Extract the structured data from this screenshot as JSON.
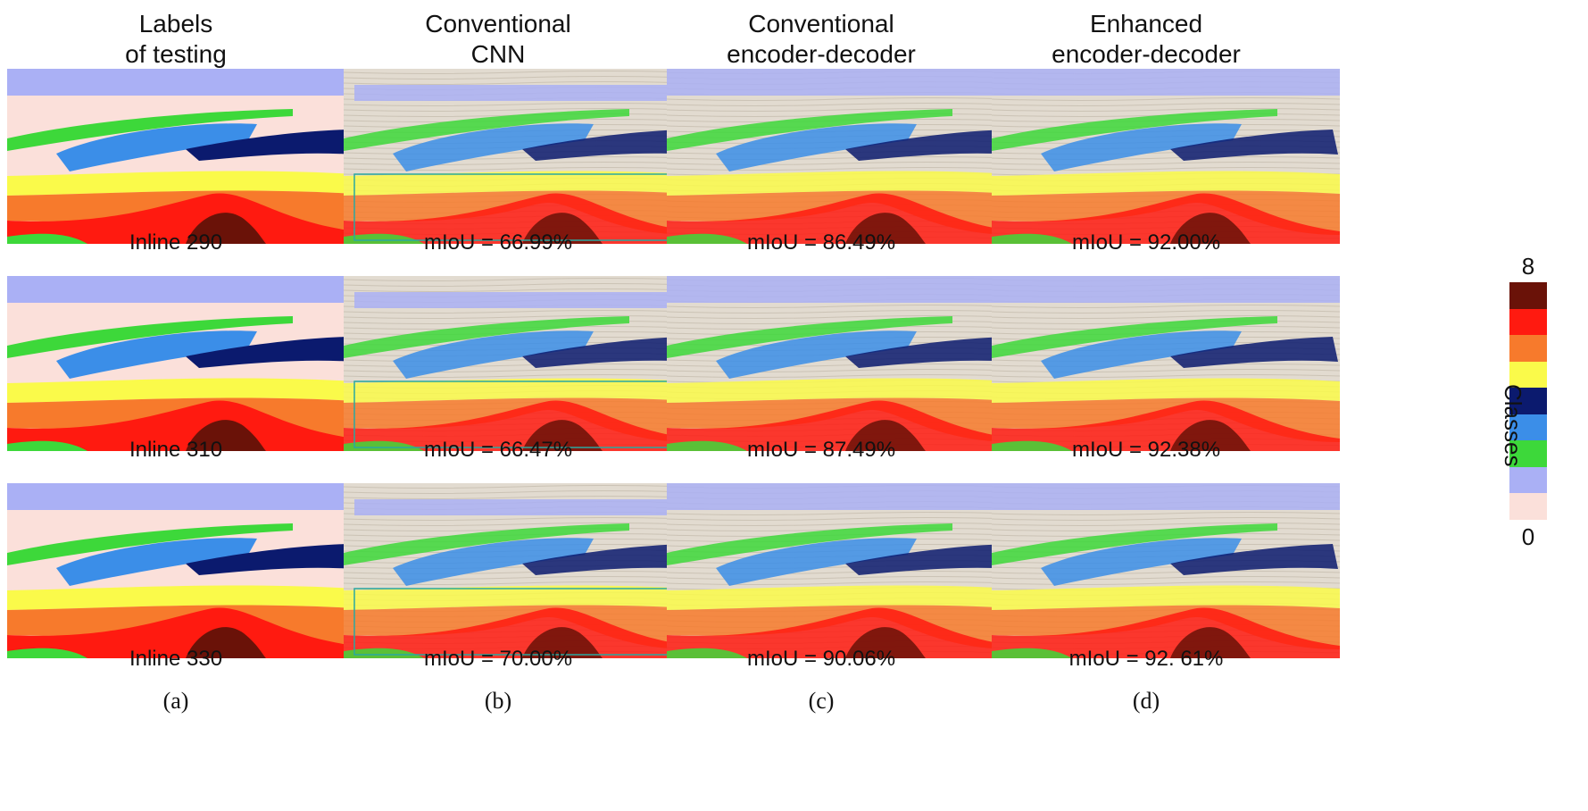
{
  "columns": [
    {
      "title_line1": "Labels",
      "title_line2": "of testing",
      "sub": "(a)"
    },
    {
      "title_line1": "Conventional",
      "title_line2": "CNN",
      "sub": "(b)"
    },
    {
      "title_line1": "Conventional",
      "title_line2": "encoder-decoder",
      "sub": "(c)"
    },
    {
      "title_line1": "Enhanced",
      "title_line2": "encoder-decoder",
      "sub": "(d)"
    }
  ],
  "rows": [
    {
      "captions": [
        "Inline 290",
        "mIoU = 66.99%",
        "mIoU = 86.49%",
        "mIoU = 92.00%"
      ]
    },
    {
      "captions": [
        "Inline 310",
        "mIoU = 66.47%",
        "mIoU = 87.49%",
        "mIoU = 92.38%"
      ]
    },
    {
      "captions": [
        "Inline 330",
        "mIoU = 70.00%",
        "mIoU = 90.06%",
        "mIoU = 92. 61%"
      ]
    }
  ],
  "colorbar": {
    "max_label": "8",
    "min_label": "0",
    "axis_label": "Classes",
    "colors_top_to_bottom": [
      "#6a1208",
      "#ff1a10",
      "#f77a2c",
      "#fafa4a",
      "#0b1a6e",
      "#3b8ee8",
      "#3dd83a",
      "#aab0f5",
      "#fbe0da"
    ]
  },
  "class_colors": {
    "c0": "#fbe0da",
    "c1": "#aab0f5",
    "c2": "#3dd83a",
    "c3": "#3b8ee8",
    "c4": "#0b1a6e",
    "c5": "#fafa4a",
    "c6": "#f77a2c",
    "c7": "#ff1a10",
    "c8": "#6a1208"
  }
}
